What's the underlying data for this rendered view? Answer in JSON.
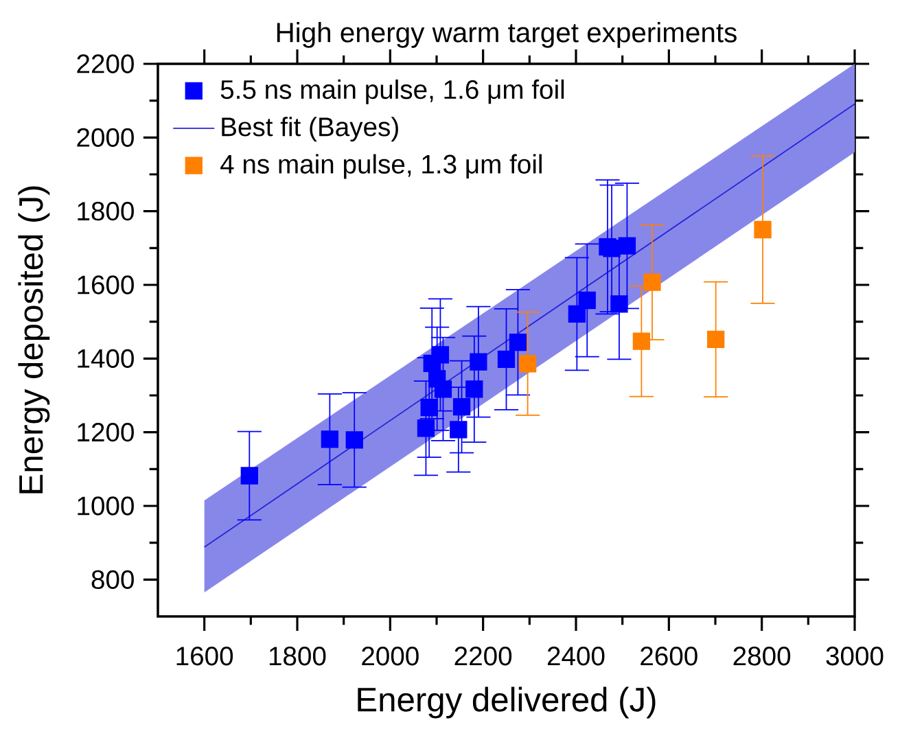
{
  "chart_data": {
    "type": "scatter",
    "title": "High energy warm target experiments",
    "xlabel": "Energy delivered (J)",
    "ylabel": "Energy deposited (J)",
    "xlim": [
      1500,
      3000
    ],
    "ylim": [
      700,
      2200
    ],
    "xticks": [
      1600,
      1800,
      2000,
      2200,
      2400,
      2600,
      2800,
      3000
    ],
    "yticks": [
      800,
      1000,
      1200,
      1400,
      1600,
      1800,
      2000,
      2200
    ],
    "legend": "top left",
    "marker": "square",
    "grid": false,
    "series": [
      {
        "name": "5.5 ns main pulse, 1.6 μm foil",
        "color": "#0000ff",
        "x": [
          1697,
          1870,
          1923,
          2077,
          2084,
          2090,
          2108,
          2101,
          2114,
          2154,
          2147,
          2181,
          2190,
          2250,
          2275,
          2402,
          2424,
          2468,
          2477,
          2510,
          2493
        ],
        "values": [
          1082,
          1181,
          1179,
          1211,
          1267,
          1387,
          1410,
          1345,
          1317,
          1269,
          1207,
          1317,
          1391,
          1398,
          1444,
          1521,
          1558,
          1703,
          1699,
          1706,
          1548
        ],
        "errors": [
          120,
          123,
          128,
          128,
          135,
          150,
          152,
          140,
          140,
          125,
          115,
          144,
          150,
          137,
          143,
          153,
          153,
          182,
          172,
          170,
          150
        ]
      },
      {
        "name": "Best fit (Bayes)",
        "color": "#2424d8",
        "type": "line",
        "marker": "none",
        "x": [
          1600,
          3000
        ],
        "values": [
          888,
          2091
        ],
        "lower": [
          765,
          1960
        ],
        "upper": [
          1015,
          2200
        ]
      },
      {
        "name": "4 ns main pulse, 1.3 μm foil",
        "color": "#ff8000",
        "x": [
          2296,
          2541,
          2564,
          2701,
          2802
        ],
        "values": [
          1386,
          1447,
          1607,
          1452,
          1750
        ],
        "errors": [
          140,
          150,
          156,
          156,
          200
        ]
      }
    ]
  }
}
